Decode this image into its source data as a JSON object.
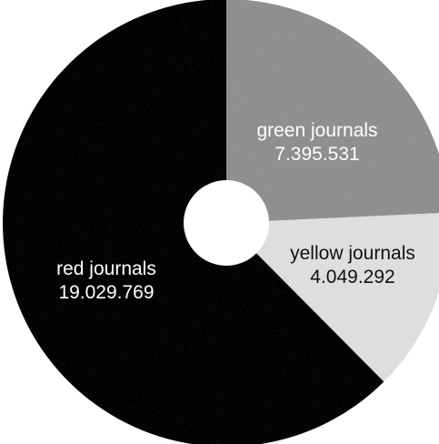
{
  "chart_data": {
    "type": "pie",
    "slices": [
      {
        "label": "green journals",
        "value": 7395531,
        "value_text": "7.395.531",
        "color": "#8f8f8f",
        "text_color": "#ffffff"
      },
      {
        "label": "yellow journals",
        "value": 4049292,
        "value_text": "4.049.292",
        "color": "#dedede",
        "text_color": "#111111"
      },
      {
        "label": "red journals",
        "value": 19029769,
        "value_text": "19.029.769",
        "color": "#000000",
        "text_color": "#ffffff"
      }
    ],
    "donut": true,
    "legend": "none"
  }
}
